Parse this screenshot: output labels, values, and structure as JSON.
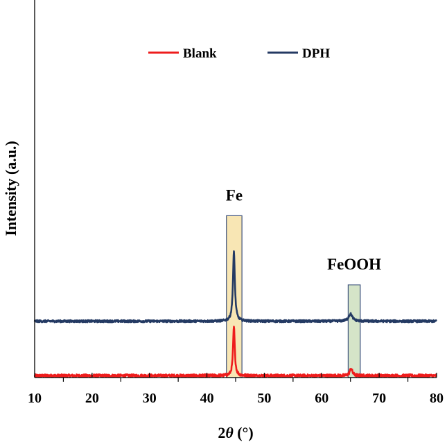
{
  "chart_data": {
    "type": "line",
    "xlabel": "2θ (°)",
    "xlabel_parts": {
      "var": "2",
      "theta": "θ",
      "unit": " (°)"
    },
    "ylabel": "Intensity (a.u.)",
    "xlim": [
      10,
      80
    ],
    "ylim": [
      0,
      1
    ],
    "x_ticks": [
      10,
      20,
      30,
      40,
      50,
      60,
      70,
      80
    ],
    "x_minor_ticks": [
      15,
      25,
      35,
      45,
      55,
      65,
      75
    ],
    "y_ticks_shown": false,
    "grid": false,
    "legend_position": "top-center",
    "series": [
      {
        "name": "Blank",
        "color": "#ee1c1c",
        "baseline": 0.005,
        "noise": 0.004,
        "peaks": [
          {
            "x": 44.7,
            "height": 0.135,
            "width": 0.18
          },
          {
            "x": 65.1,
            "height": 0.02,
            "width": 0.28
          }
        ]
      },
      {
        "name": "DPH",
        "color": "#243a63",
        "baseline": 0.155,
        "noise": 0.003,
        "peaks": [
          {
            "x": 44.7,
            "height": 0.19,
            "width": 0.2
          },
          {
            "x": 65.0,
            "height": 0.02,
            "width": 0.4
          }
        ]
      }
    ],
    "annotations": [
      {
        "label": "Fe",
        "x_range": [
          43.4,
          46.1
        ],
        "y_range": [
          0,
          0.445
        ],
        "fill": "#f8e6b4",
        "stroke": "#3a4f7a"
      },
      {
        "label": "FeOOH",
        "x_range": [
          64.6,
          66.7
        ],
        "y_range": [
          0,
          0.255
        ],
        "fill": "#d5e4c8",
        "stroke": "#3a4f7a"
      }
    ]
  }
}
